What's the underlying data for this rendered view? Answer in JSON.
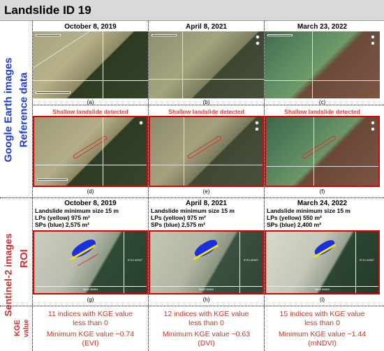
{
  "title": "Landslide ID 19",
  "left_labels": {
    "google_earth": "Google Earth images",
    "reference": "Reference data",
    "sentinel": "Sentinel-2 images",
    "roi": "ROI",
    "kge": "KGE",
    "value": "value"
  },
  "ge_dates": [
    "October 8, 2019",
    "April 8, 2021",
    "March 23, 2022"
  ],
  "ge_captions_top": [
    "(a)",
    "(b)",
    "(c)"
  ],
  "detected": [
    "Shallow landslide detected",
    "Shallow landslide detected",
    "Shallow landslide detected"
  ],
  "ge_captions_bottom": [
    "(d)",
    "(e)",
    "(f)"
  ],
  "s2_dates": [
    "October 8, 2019",
    "April 8, 2021",
    "March 24, 2022"
  ],
  "s2_info": [
    [
      "Landslide minimum size 15 m",
      "LPs (yellow) 975 m²",
      "SPs (blue) 2,575 m²"
    ],
    [
      "Landslide minimum size 15 m",
      "LPs (yellow) 975 m²",
      "SPs (blue) 2,575 m²"
    ],
    [
      "Landslide minimum size 15 m",
      "LPs (yellow) 550 m²",
      "SPs (blue) 2,400 m²"
    ]
  ],
  "s2_captions": [
    "(g)",
    "(h)",
    "(i)"
  ],
  "kge_counts": [
    [
      "11 indices with KGE value",
      "less than 0"
    ],
    [
      "12 indices with KGE value",
      "less than 0"
    ],
    [
      "15 indices with KGE value",
      "less than 0"
    ]
  ],
  "kge_min": [
    [
      "Minimum KGE value −0.74",
      "(EVI)"
    ],
    [
      "Minimum KGE value −0.63",
      "(DVI)"
    ],
    [
      "Minimum KGE value −1.44",
      "(mNDVI)"
    ]
  ],
  "colors": {
    "accent_blue": "#1f3bd6",
    "accent_red": "#d32f2f",
    "frame_red": "#e00000"
  }
}
